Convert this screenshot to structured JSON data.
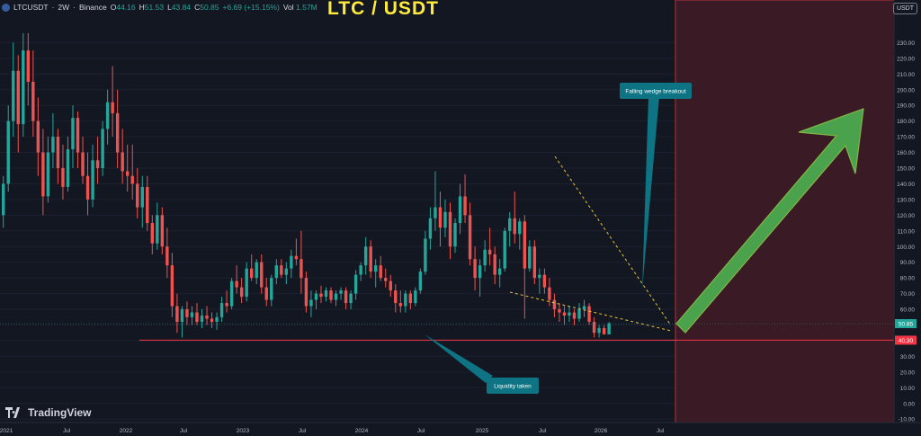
{
  "header": {
    "symbol": "LTCUSDT",
    "interval": "2W",
    "exchange": "Binance",
    "sep": "·",
    "o_label": "O",
    "o": "44.16",
    "h_label": "H",
    "h": "51.53",
    "l_label": "L",
    "l": "43.84",
    "c_label": "C",
    "c": "50.85",
    "change": "+6.69 (+15.15%)",
    "vol_label": "Vol",
    "vol": "1.57M"
  },
  "title": "LTC / USDT",
  "currency_button": "USDT",
  "brand": "TradingView",
  "colors": {
    "background": "#131722",
    "up": "#26a69a",
    "down": "#ef5350",
    "title": "#ffeb3b",
    "support_line": "#f23645",
    "wedge_lines": "#e8c53a",
    "callout": "#0e7382",
    "forecast_zone": "#3a1a24",
    "arrow": "#4caf50"
  },
  "annotations": {
    "wedge": "Falling wedge breakout",
    "liquidity": "Liquidity taken"
  },
  "chart_data": {
    "type": "candlestick",
    "title": "LTC / USDT",
    "yaxis_ticks": [
      230,
      220,
      210,
      200,
      190,
      180,
      170,
      160,
      150,
      140,
      130,
      120,
      110,
      100,
      90,
      80,
      70,
      60,
      50,
      40,
      30,
      20,
      10,
      0,
      -10
    ],
    "ylim": [
      -15,
      236
    ],
    "xaxis_ticks": [
      "2021",
      "Jul",
      "2022",
      "Jul",
      "2023",
      "Jul",
      "2024",
      "Jul",
      "2025",
      "Jul",
      "2026",
      "Jul"
    ],
    "price_labels": {
      "current": "50.85",
      "support": "40.30"
    },
    "support_level": 40.3,
    "series": [
      {
        "name": "LTCUSDT",
        "values": [
          [
            120,
            145,
            112,
            140
          ],
          [
            140,
            190,
            135,
            180
          ],
          [
            180,
            230,
            170,
            212
          ],
          [
            212,
            222,
            160,
            178
          ],
          [
            178,
            236,
            170,
            225
          ],
          [
            225,
            236,
            190,
            205
          ],
          [
            205,
            225,
            170,
            180
          ],
          [
            180,
            195,
            145,
            160
          ],
          [
            160,
            175,
            120,
            132
          ],
          [
            132,
            170,
            128,
            160
          ],
          [
            160,
            185,
            150,
            170
          ],
          [
            170,
            175,
            140,
            150
          ],
          [
            150,
            165,
            130,
            138
          ],
          [
            138,
            170,
            135,
            162
          ],
          [
            162,
            190,
            150,
            182
          ],
          [
            182,
            186,
            150,
            160
          ],
          [
            160,
            170,
            140,
            145
          ],
          [
            145,
            160,
            120,
            130
          ],
          [
            130,
            165,
            125,
            155
          ],
          [
            155,
            170,
            140,
            150
          ],
          [
            150,
            180,
            145,
            175
          ],
          [
            175,
            200,
            165,
            192
          ],
          [
            192,
            215,
            170,
            185
          ],
          [
            185,
            200,
            150,
            160
          ],
          [
            160,
            175,
            140,
            148
          ],
          [
            148,
            165,
            135,
            145
          ],
          [
            145,
            165,
            130,
            140
          ],
          [
            140,
            150,
            118,
            125
          ],
          [
            125,
            145,
            112,
            138
          ],
          [
            138,
            145,
            110,
            115
          ],
          [
            115,
            120,
            95,
            102
          ],
          [
            102,
            128,
            98,
            120
          ],
          [
            120,
            125,
            95,
            100
          ],
          [
            100,
            112,
            80,
            88
          ],
          [
            88,
            96,
            55,
            62
          ],
          [
            62,
            70,
            45,
            52
          ],
          [
            52,
            62,
            42,
            60
          ],
          [
            60,
            65,
            50,
            55
          ],
          [
            55,
            62,
            50,
            58
          ],
          [
            58,
            64,
            50,
            52
          ],
          [
            52,
            60,
            48,
            56
          ],
          [
            56,
            62,
            50,
            54
          ],
          [
            54,
            58,
            48,
            52
          ],
          [
            52,
            58,
            47,
            55
          ],
          [
            55,
            68,
            52,
            64
          ],
          [
            64,
            72,
            58,
            62
          ],
          [
            62,
            80,
            60,
            78
          ],
          [
            78,
            88,
            70,
            74
          ],
          [
            74,
            80,
            64,
            68
          ],
          [
            68,
            90,
            65,
            86
          ],
          [
            86,
            95,
            78,
            80
          ],
          [
            80,
            92,
            76,
            90
          ],
          [
            90,
            95,
            70,
            74
          ],
          [
            74,
            80,
            62,
            66
          ],
          [
            66,
            82,
            62,
            80
          ],
          [
            80,
            92,
            76,
            88
          ],
          [
            88,
            92,
            80,
            82
          ],
          [
            82,
            90,
            76,
            86
          ],
          [
            86,
            98,
            80,
            94
          ],
          [
            94,
            105,
            88,
            92
          ],
          [
            92,
            110,
            70,
            80
          ],
          [
            80,
            84,
            58,
            62
          ],
          [
            62,
            72,
            55,
            66
          ],
          [
            66,
            72,
            60,
            70
          ],
          [
            70,
            75,
            64,
            68
          ],
          [
            68,
            74,
            65,
            72
          ],
          [
            72,
            74,
            64,
            66
          ],
          [
            66,
            72,
            62,
            70
          ],
          [
            70,
            74,
            66,
            72
          ],
          [
            72,
            74,
            60,
            64
          ],
          [
            64,
            72,
            60,
            70
          ],
          [
            70,
            85,
            66,
            82
          ],
          [
            82,
            90,
            78,
            88
          ],
          [
            88,
            106,
            82,
            100
          ],
          [
            100,
            104,
            80,
            84
          ],
          [
            84,
            92,
            74,
            88
          ],
          [
            88,
            94,
            78,
            80
          ],
          [
            80,
            86,
            74,
            78
          ],
          [
            78,
            82,
            68,
            72
          ],
          [
            72,
            76,
            58,
            64
          ],
          [
            64,
            72,
            58,
            62
          ],
          [
            62,
            72,
            58,
            70
          ],
          [
            70,
            72,
            60,
            64
          ],
          [
            64,
            74,
            62,
            72
          ],
          [
            72,
            86,
            70,
            84
          ],
          [
            84,
            110,
            82,
            105
          ],
          [
            105,
            125,
            98,
            118
          ],
          [
            118,
            148,
            110,
            125
          ],
          [
            125,
            135,
            100,
            112
          ],
          [
            112,
            130,
            106,
            122
          ],
          [
            122,
            128,
            92,
            100
          ],
          [
            100,
            118,
            96,
            115
          ],
          [
            115,
            140,
            108,
            132
          ],
          [
            132,
            146,
            115,
            120
          ],
          [
            120,
            128,
            88,
            92
          ],
          [
            92,
            100,
            72,
            80
          ],
          [
            80,
            92,
            68,
            88
          ],
          [
            88,
            104,
            84,
            98
          ],
          [
            98,
            112,
            88,
            95
          ],
          [
            95,
            100,
            76,
            82
          ],
          [
            82,
            92,
            74,
            86
          ],
          [
            86,
            112,
            84,
            110
          ],
          [
            110,
            122,
            100,
            118
          ],
          [
            118,
            135,
            102,
            108
          ],
          [
            108,
            118,
            98,
            116
          ],
          [
            116,
            120,
            54,
            86
          ],
          [
            86,
            104,
            84,
            100
          ],
          [
            100,
            104,
            76,
            80
          ],
          [
            80,
            86,
            70,
            82
          ],
          [
            82,
            86,
            70,
            74
          ],
          [
            74,
            80,
            62,
            66
          ],
          [
            66,
            70,
            55,
            60
          ],
          [
            60,
            64,
            52,
            58
          ],
          [
            58,
            62,
            50,
            56
          ],
          [
            56,
            62,
            52,
            58
          ],
          [
            58,
            60,
            50,
            54
          ],
          [
            54,
            64,
            52,
            60
          ],
          [
            60,
            66,
            55,
            62
          ],
          [
            62,
            64,
            50,
            52
          ],
          [
            52,
            55,
            42,
            45
          ],
          [
            45,
            50,
            42,
            48
          ],
          [
            48,
            50,
            44,
            44
          ],
          [
            44,
            52,
            44,
            51
          ]
        ]
      }
    ]
  }
}
